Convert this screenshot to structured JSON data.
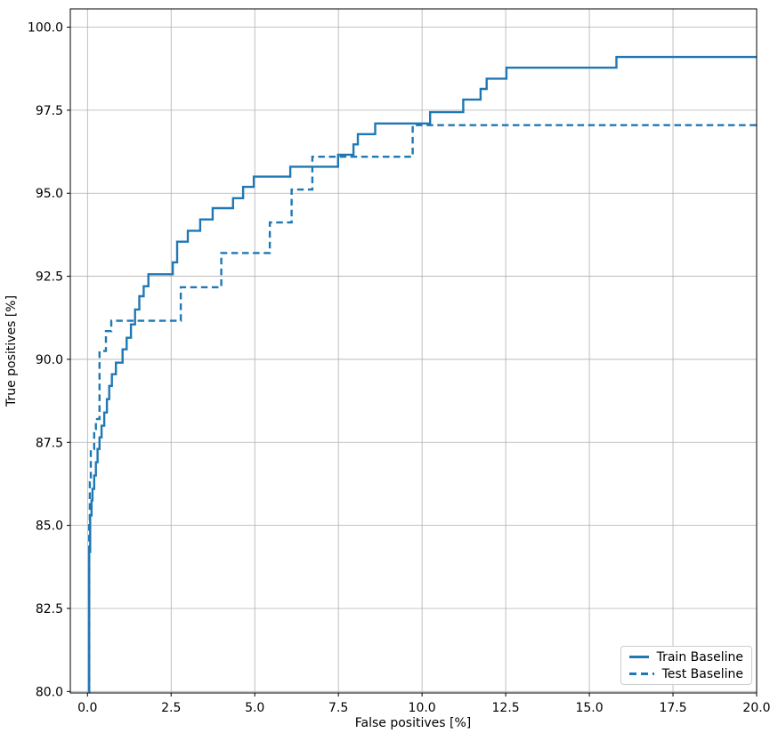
{
  "chart_data": {
    "type": "line",
    "title": "",
    "xlabel": "False positives [%]",
    "ylabel": "True positives [%]",
    "xlim": [
      -0.513,
      20.0
    ],
    "ylim": [
      79.955,
      100.55
    ],
    "xticks": [
      0.0,
      2.5,
      5.0,
      7.5,
      10.0,
      12.5,
      15.0,
      17.5,
      20.0
    ],
    "yticks": [
      80.0,
      82.5,
      85.0,
      87.5,
      90.0,
      92.5,
      95.0,
      97.5,
      100.0
    ],
    "grid": true,
    "step": "post",
    "legend_position": "lower right",
    "colors": {
      "line": "#1f77b4",
      "grid": "#b0b0b0",
      "spine": "#000000",
      "legend_border": "#cccccc",
      "background": "#ffffff"
    },
    "series": [
      {
        "name": "Train Baseline",
        "style": "solid",
        "points": [
          [
            0.03,
            80.0
          ],
          [
            0.05,
            84.2
          ],
          [
            0.08,
            85.3
          ],
          [
            0.12,
            85.75
          ],
          [
            0.15,
            86.1
          ],
          [
            0.2,
            86.5
          ],
          [
            0.25,
            86.9
          ],
          [
            0.3,
            87.3
          ],
          [
            0.36,
            87.65
          ],
          [
            0.42,
            88.0
          ],
          [
            0.5,
            88.4
          ],
          [
            0.58,
            88.8
          ],
          [
            0.65,
            89.2
          ],
          [
            0.73,
            89.55
          ],
          [
            0.85,
            89.9
          ],
          [
            1.05,
            90.3
          ],
          [
            1.17,
            90.65
          ],
          [
            1.3,
            91.05
          ],
          [
            1.42,
            91.5
          ],
          [
            1.55,
            91.9
          ],
          [
            1.68,
            92.2
          ],
          [
            1.82,
            92.56
          ],
          [
            2.55,
            92.92
          ],
          [
            2.68,
            93.54
          ],
          [
            3.0,
            93.87
          ],
          [
            3.37,
            94.21
          ],
          [
            3.74,
            94.55
          ],
          [
            4.35,
            94.85
          ],
          [
            4.65,
            95.19
          ],
          [
            4.97,
            95.5
          ],
          [
            6.06,
            95.8
          ],
          [
            7.49,
            96.16
          ],
          [
            7.95,
            96.47
          ],
          [
            8.08,
            96.78
          ],
          [
            8.6,
            97.1
          ],
          [
            10.24,
            97.44
          ],
          [
            11.23,
            97.82
          ],
          [
            11.75,
            98.14
          ],
          [
            11.93,
            98.45
          ],
          [
            12.52,
            98.78
          ],
          [
            15.81,
            99.1
          ],
          [
            20.0,
            99.1
          ]
        ]
      },
      {
        "name": "Test Baseline",
        "style": "dashed",
        "points": [
          [
            0.03,
            80.0
          ],
          [
            0.05,
            85.1
          ],
          [
            0.07,
            86.3
          ],
          [
            0.1,
            87.3
          ],
          [
            0.2,
            87.9
          ],
          [
            0.25,
            88.2
          ],
          [
            0.36,
            90.25
          ],
          [
            0.55,
            90.85
          ],
          [
            0.71,
            91.16
          ],
          [
            2.79,
            92.17
          ],
          [
            4.0,
            93.2
          ],
          [
            5.45,
            94.12
          ],
          [
            6.1,
            95.11
          ],
          [
            6.72,
            96.1
          ],
          [
            9.72,
            97.05
          ],
          [
            20.0,
            97.05
          ]
        ]
      }
    ]
  }
}
